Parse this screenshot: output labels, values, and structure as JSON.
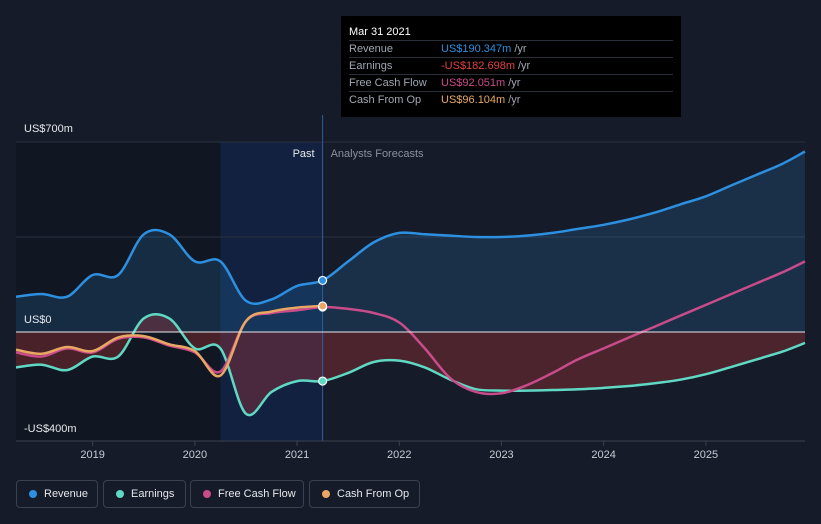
{
  "chart_data": {
    "type": "line",
    "y_unit_top": "US$700m",
    "y_unit_zero": "US$0",
    "y_unit_bottom": "-US$400m",
    "ylim": [
      -400,
      700
    ],
    "x_ticks": [
      "2019",
      "2020",
      "2021",
      "2022",
      "2023",
      "2024",
      "2025"
    ],
    "xlim": [
      2018.25,
      2025.97
    ],
    "past_label": "Past",
    "forecast_label": "Analysts Forecasts",
    "past_end": 2021.25,
    "highlight_start": 2020.25,
    "series": [
      {
        "name": "Revenue",
        "color": "#2d8fe0",
        "x": [
          2018.25,
          2018.5,
          2018.75,
          2019.0,
          2019.25,
          2019.5,
          2019.75,
          2020.0,
          2020.25,
          2020.5,
          2020.75,
          2021.0,
          2021.25,
          2021.5,
          2021.75,
          2022.0,
          2022.25,
          2022.5,
          2022.75,
          2023.0,
          2023.25,
          2023.5,
          2023.75,
          2024.0,
          2024.25,
          2024.5,
          2024.75,
          2025.0,
          2025.25,
          2025.5,
          2025.75,
          2025.97
        ],
        "values": [
          130,
          140,
          130,
          210,
          210,
          360,
          360,
          260,
          260,
          115,
          120,
          170,
          190,
          260,
          330,
          365,
          360,
          355,
          350,
          350,
          355,
          365,
          380,
          395,
          415,
          440,
          470,
          500,
          540,
          580,
          620,
          665
        ]
      },
      {
        "name": "Earnings",
        "color": "#5fd9c4",
        "x": [
          2018.25,
          2018.5,
          2018.75,
          2019.0,
          2019.25,
          2019.5,
          2019.75,
          2020.0,
          2020.25,
          2020.5,
          2020.75,
          2021.0,
          2021.25,
          2021.5,
          2021.75,
          2022.0,
          2022.25,
          2022.5,
          2022.75,
          2023.0,
          2023.25,
          2023.5,
          2023.75,
          2024.0,
          2024.25,
          2024.5,
          2024.75,
          2025.0,
          2025.25,
          2025.5,
          2025.75,
          2025.97
        ],
        "values": [
          -130,
          -120,
          -140,
          -90,
          -90,
          50,
          50,
          -60,
          -60,
          -300,
          -220,
          -180,
          -180,
          -150,
          -110,
          -105,
          -130,
          -175,
          -210,
          -215,
          -215,
          -213,
          -210,
          -205,
          -198,
          -188,
          -175,
          -155,
          -128,
          -100,
          -72,
          -40
        ]
      },
      {
        "name": "Free Cash Flow",
        "color": "#c94c8a",
        "x": [
          2018.25,
          2018.5,
          2018.75,
          2019.0,
          2019.25,
          2019.5,
          2019.75,
          2020.0,
          2020.25,
          2020.5,
          2020.75,
          2021.0,
          2021.25,
          2021.5,
          2021.75,
          2022.0,
          2022.25,
          2022.5,
          2022.75,
          2023.0,
          2023.25,
          2023.5,
          2023.75,
          2024.0,
          2024.25,
          2024.5,
          2024.75,
          2025.0,
          2025.25,
          2025.5,
          2025.75,
          2025.97
        ],
        "values": [
          -75,
          -90,
          -60,
          -75,
          -25,
          -20,
          -50,
          -75,
          -145,
          40,
          70,
          80,
          92,
          85,
          70,
          35,
          -60,
          -170,
          -220,
          -225,
          -195,
          -150,
          -100,
          -60,
          -20,
          20,
          60,
          100,
          140,
          180,
          220,
          260
        ]
      },
      {
        "name": "Cash From Op",
        "color": "#e8a864",
        "x": [
          2018.25,
          2018.5,
          2018.75,
          2019.0,
          2019.25,
          2019.5,
          2019.75,
          2020.0,
          2020.25,
          2020.5,
          2020.75,
          2021.0,
          2021.25
        ],
        "values": [
          -65,
          -80,
          -55,
          -70,
          -20,
          -15,
          -45,
          -70,
          -160,
          40,
          75,
          90,
          96
        ]
      }
    ]
  },
  "tooltip": {
    "date": "Mar 31 2021",
    "rows": [
      {
        "label": "Revenue",
        "value": "US$190.347m",
        "unit": "/yr",
        "color": "#2d8fe0"
      },
      {
        "label": "Earnings",
        "value": "-US$182.698m",
        "unit": "/yr",
        "color": "#e0423f"
      },
      {
        "label": "Free Cash Flow",
        "value": "US$92.051m",
        "unit": "/yr",
        "color": "#c94c8a"
      },
      {
        "label": "Cash From Op",
        "value": "US$96.104m",
        "unit": "/yr",
        "color": "#e8a864"
      }
    ]
  },
  "legend": [
    {
      "label": "Revenue",
      "color": "#2d8fe0"
    },
    {
      "label": "Earnings",
      "color": "#5fd9c4"
    },
    {
      "label": "Free Cash Flow",
      "color": "#c94c8a"
    },
    {
      "label": "Cash From Op",
      "color": "#e8a864"
    }
  ]
}
